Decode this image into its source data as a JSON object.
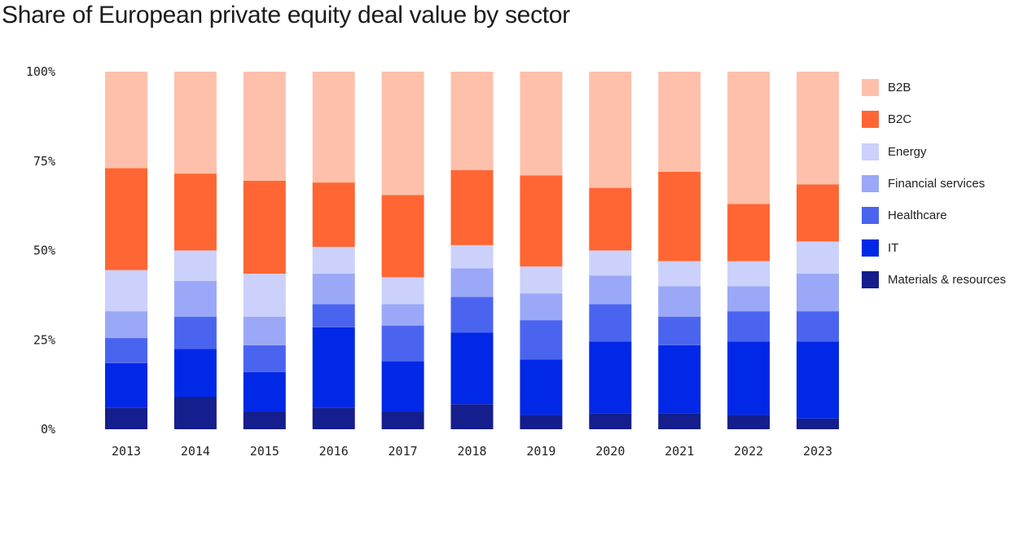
{
  "title": "Share of European private equity deal value by sector",
  "chart_data": {
    "type": "bar",
    "stacked": true,
    "title": "Share of European private equity deal value by sector",
    "xlabel": "",
    "ylabel": "",
    "ylim": [
      0,
      100
    ],
    "yticks": [
      {
        "value": 0,
        "label": "0%"
      },
      {
        "value": 25,
        "label": "25%"
      },
      {
        "value": 50,
        "label": "50%"
      },
      {
        "value": 75,
        "label": "75%"
      },
      {
        "value": 100,
        "label": "100%"
      }
    ],
    "categories": [
      "2013",
      "2014",
      "2015",
      "2016",
      "2017",
      "2018",
      "2019",
      "2020",
      "2021",
      "2022",
      "2023"
    ],
    "legend_position": "right",
    "series": [
      {
        "name": "Materials & resources",
        "color": "#141e8c",
        "values": [
          6,
          9,
          5,
          6,
          5,
          7,
          4,
          4.5,
          4.5,
          4,
          3
        ]
      },
      {
        "name": "IT",
        "color": "#0028e6",
        "values": [
          12.5,
          13.5,
          11,
          22.5,
          14,
          20,
          15.5,
          20,
          19,
          20.5,
          21.5
        ]
      },
      {
        "name": "Healthcare",
        "color": "#4b64f0",
        "values": [
          7,
          9,
          7.5,
          6.5,
          10,
          10,
          11,
          10.5,
          8,
          8.5,
          8.5
        ]
      },
      {
        "name": "Financial services",
        "color": "#9aa8f7",
        "values": [
          7.5,
          10,
          8,
          8.5,
          6,
          8,
          7.5,
          8,
          8.5,
          7,
          10.5
        ]
      },
      {
        "name": "Energy",
        "color": "#cbd1fb",
        "values": [
          11.5,
          8.5,
          12,
          7.5,
          7.5,
          6.5,
          7.5,
          7,
          7,
          7,
          9
        ]
      },
      {
        "name": "B2C",
        "color": "#ff6633",
        "values": [
          28.5,
          21.5,
          26,
          18,
          23,
          21,
          25.5,
          17.5,
          25,
          16,
          16
        ]
      },
      {
        "name": "B2B",
        "color": "#fec0aa",
        "values": [
          27,
          28.5,
          30.5,
          31,
          34.5,
          27.5,
          29,
          32.5,
          28,
          37,
          31.5
        ]
      }
    ],
    "legend_order": [
      "B2B",
      "B2C",
      "Energy",
      "Financial services",
      "Healthcare",
      "IT",
      "Materials & resources"
    ]
  }
}
